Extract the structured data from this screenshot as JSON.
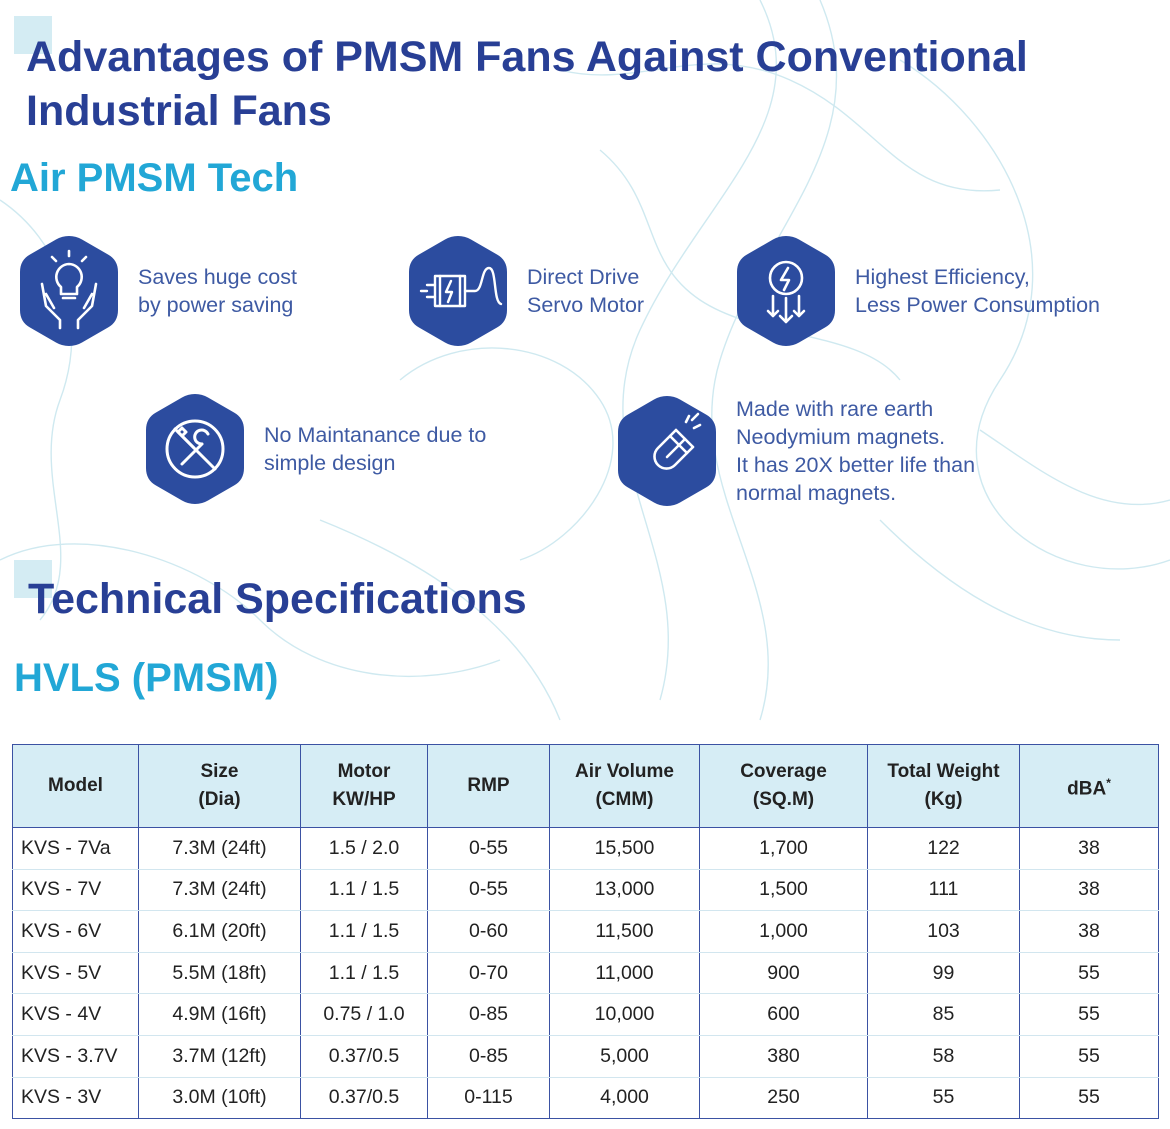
{
  "page": {
    "title": "Advantages of PMSM Fans Against Conventional Industrial Fans",
    "section_subtitle": "Air PMSM Tech",
    "spec_title": "Technical Specifications",
    "spec_subtitle": "HVLS (PMSM)"
  },
  "colors": {
    "title_blue": "#283f95",
    "subtitle_cyan": "#22a7d6",
    "icon_hex_blue": "#2c4c9f",
    "header_bg": "#d6edf5",
    "feature_text": "#3e5aa3"
  },
  "features": [
    {
      "icon": "lightbulb-hands-icon",
      "lines": [
        "Saves huge cost",
        "by power saving"
      ]
    },
    {
      "icon": "servo-motor-icon",
      "lines": [
        "Direct Drive",
        "Servo Motor"
      ]
    },
    {
      "icon": "efficiency-bolt-icon",
      "lines": [
        "Highest Efficiency,",
        "Less Power Consumption"
      ]
    },
    {
      "icon": "no-tools-icon",
      "lines": [
        "No Maintanance due to",
        "simple design"
      ]
    },
    {
      "icon": "magnet-icon",
      "lines": [
        "Made with rare earth",
        "Neodymium magnets.",
        "It has 20X better life than",
        "normal magnets."
      ]
    }
  ],
  "table": {
    "headers": [
      [
        "Model"
      ],
      [
        "Size",
        "(Dia)"
      ],
      [
        "Motor",
        "KW/HP"
      ],
      [
        "RMP"
      ],
      [
        "Air Volume",
        "(CMM)"
      ],
      [
        "Coverage",
        "(SQ.M)"
      ],
      [
        "Total Weight",
        "(Kg)"
      ],
      [
        "dBA",
        "*"
      ]
    ],
    "rows": [
      [
        "KVS - 7Va",
        "7.3M (24ft)",
        "1.5 / 2.0",
        "0-55",
        "15,500",
        "1,700",
        "122",
        "38"
      ],
      [
        "KVS - 7V",
        "7.3M (24ft)",
        "1.1 / 1.5",
        "0-55",
        "13,000",
        "1,500",
        "111",
        "38"
      ],
      [
        "KVS - 6V",
        "6.1M (20ft)",
        "1.1 / 1.5",
        "0-60",
        "11,500",
        "1,000",
        "103",
        "38"
      ],
      [
        "KVS - 5V",
        "5.5M (18ft)",
        "1.1 / 1.5",
        "0-70",
        "11,000",
        "900",
        "99",
        "55"
      ],
      [
        "KVS - 4V",
        "4.9M (16ft)",
        "0.75 / 1.0",
        "0-85",
        "10,000",
        "600",
        "85",
        "55"
      ],
      [
        "KVS - 3.7V",
        "3.7M (12ft)",
        "0.37/0.5",
        "0-85",
        "5,000",
        "380",
        "58",
        "55"
      ],
      [
        "KVS - 3V",
        "3.0M (10ft)",
        "0.37/0.5",
        "0-115",
        "4,000",
        "250",
        "55",
        "55"
      ]
    ]
  }
}
